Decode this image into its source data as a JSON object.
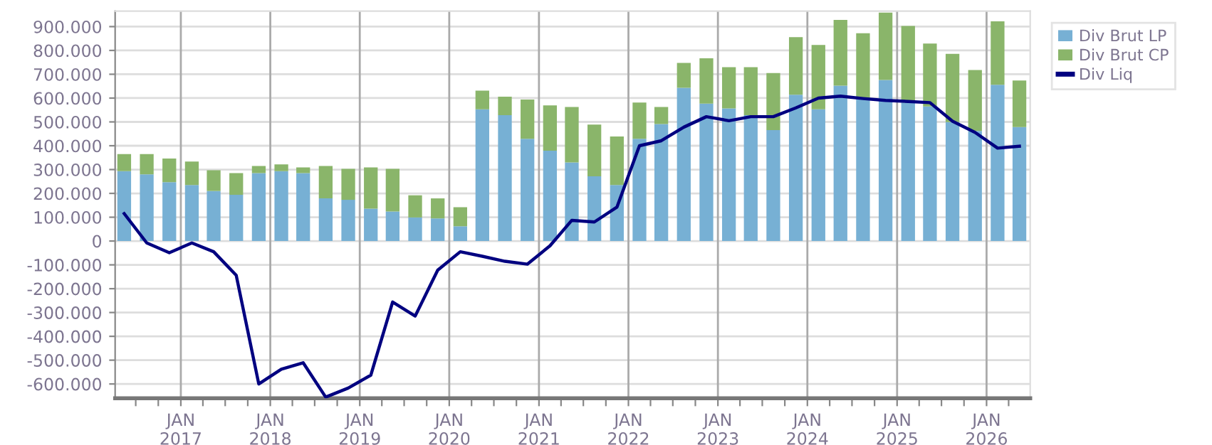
{
  "chart_data": {
    "type": "bar",
    "stacked": true,
    "x": [
      "2016-05-15",
      "2016-08-15",
      "2016-11-15",
      "2017-02-15",
      "2017-05-15",
      "2017-08-15",
      "2017-11-15",
      "2018-02-15",
      "2018-05-15",
      "2018-08-15",
      "2018-11-15",
      "2019-02-15",
      "2019-05-15",
      "2019-08-15",
      "2019-11-15",
      "2020-02-15",
      "2020-05-15",
      "2020-08-15",
      "2020-11-15",
      "2021-02-15",
      "2021-05-15",
      "2021-08-15",
      "2021-11-15",
      "2022-02-15",
      "2022-05-15",
      "2022-08-15",
      "2022-11-15",
      "2023-02-15",
      "2023-05-15",
      "2023-08-15",
      "2023-11-15",
      "2024-02-15",
      "2024-05-15",
      "2024-08-15",
      "2024-11-15",
      "2025-02-15",
      "2025-05-15",
      "2025-08-15",
      "2025-11-15",
      "2026-02-15",
      "2026-05-15"
    ],
    "series": [
      {
        "name": "Div Brut LP",
        "color": "#77b0d4",
        "values": [
          293000,
          280000,
          247000,
          235000,
          210000,
          194000,
          285000,
          293000,
          285000,
          179000,
          173000,
          136000,
          124000,
          99000,
          95000,
          62000,
          553000,
          528000,
          429000,
          379000,
          330000,
          272000,
          235000,
          429000,
          491000,
          643000,
          577000,
          557000,
          528000,
          466000,
          614000,
          553000,
          652000,
          598000,
          676000,
          581000,
          565000,
          499000,
          462000,
          656000,
          478000
        ]
      },
      {
        "name": "Div Brut CP",
        "color": "#8ab56a",
        "values": [
          72000,
          85000,
          99000,
          99000,
          87000,
          91000,
          30000,
          29000,
          24000,
          136000,
          130000,
          173000,
          179000,
          93000,
          84000,
          80000,
          78000,
          78000,
          165000,
          190000,
          233000,
          217000,
          204000,
          152000,
          72000,
          105000,
          190000,
          173000,
          202000,
          239000,
          242000,
          270000,
          276000,
          274000,
          283000,
          322000,
          264000,
          287000,
          256000,
          266000,
          196000
        ]
      },
      {
        "name": "Div Liq",
        "type": "line",
        "color": "#000080",
        "values": [
          115000,
          -8000,
          -49000,
          -8000,
          -45000,
          -144000,
          -600000,
          -538000,
          -511000,
          -655000,
          -617000,
          -563000,
          -256000,
          -315000,
          -122000,
          -45000,
          -64000,
          -85000,
          -97000,
          -20000,
          87000,
          80000,
          142000,
          400000,
          421000,
          478000,
          522000,
          505000,
          522000,
          522000,
          559000,
          600000,
          608000,
          598000,
          590000,
          586000,
          581000,
          503000,
          456000,
          390000,
          398000
        ]
      }
    ],
    "xlim": [
      "2016-04-08",
      "2026-06-28"
    ],
    "xticks": [
      {
        "value": "2016-07-01",
        "label": null
      },
      {
        "value": "2016-10-01",
        "label": null
      },
      {
        "value": "2017-01-01",
        "label": "JAN\n2017"
      },
      {
        "value": "2017-04-01",
        "label": null
      },
      {
        "value": "2017-07-01",
        "label": null
      },
      {
        "value": "2017-10-01",
        "label": null
      },
      {
        "value": "2018-01-01",
        "label": "JAN\n2018"
      },
      {
        "value": "2018-04-01",
        "label": null
      },
      {
        "value": "2018-07-01",
        "label": null
      },
      {
        "value": "2018-10-01",
        "label": null
      },
      {
        "value": "2019-01-01",
        "label": "JAN\n2019"
      },
      {
        "value": "2019-04-01",
        "label": null
      },
      {
        "value": "2019-07-01",
        "label": null
      },
      {
        "value": "2019-10-01",
        "label": null
      },
      {
        "value": "2020-01-01",
        "label": "JAN\n2020"
      },
      {
        "value": "2020-04-01",
        "label": null
      },
      {
        "value": "2020-07-01",
        "label": null
      },
      {
        "value": "2020-10-01",
        "label": null
      },
      {
        "value": "2021-01-01",
        "label": "JAN\n2021"
      },
      {
        "value": "2021-04-01",
        "label": null
      },
      {
        "value": "2021-07-01",
        "label": null
      },
      {
        "value": "2021-10-01",
        "label": null
      },
      {
        "value": "2022-01-01",
        "label": "JAN\n2022"
      },
      {
        "value": "2022-04-01",
        "label": null
      },
      {
        "value": "2022-07-01",
        "label": null
      },
      {
        "value": "2022-10-01",
        "label": null
      },
      {
        "value": "2023-01-01",
        "label": "JAN\n2023"
      },
      {
        "value": "2023-04-01",
        "label": null
      },
      {
        "value": "2023-07-01",
        "label": null
      },
      {
        "value": "2023-10-01",
        "label": null
      },
      {
        "value": "2024-01-01",
        "label": "JAN\n2024"
      },
      {
        "value": "2024-04-01",
        "label": null
      },
      {
        "value": "2024-07-01",
        "label": null
      },
      {
        "value": "2024-10-01",
        "label": null
      },
      {
        "value": "2025-01-01",
        "label": "JAN\n2025"
      },
      {
        "value": "2025-04-01",
        "label": null
      },
      {
        "value": "2025-07-01",
        "label": null
      },
      {
        "value": "2025-10-01",
        "label": null
      },
      {
        "value": "2026-01-01",
        "label": "JAN\n2026"
      },
      {
        "value": "2026-04-01",
        "label": null
      }
    ],
    "ylim": [
      -660000,
      965000
    ],
    "yticks": [
      {
        "value": -600000,
        "label": "-600.000"
      },
      {
        "value": -500000,
        "label": "-500.000"
      },
      {
        "value": -400000,
        "label": "-400.000"
      },
      {
        "value": -300000,
        "label": "-300.000"
      },
      {
        "value": -200000,
        "label": "-200.000"
      },
      {
        "value": -100000,
        "label": "-100.000"
      },
      0,
      {
        "value": 100000,
        "label": "100.000"
      },
      {
        "value": 200000,
        "label": "200.000"
      },
      {
        "value": 300000,
        "label": "300.000"
      },
      {
        "value": 400000,
        "label": "400.000"
      },
      {
        "value": 500000,
        "label": "500.000"
      },
      {
        "value": 600000,
        "label": "600.000"
      },
      {
        "value": 700000,
        "label": "700.000"
      },
      {
        "value": 800000,
        "label": "800.000"
      },
      {
        "value": 900000,
        "label": "900.000"
      }
    ],
    "grid": true,
    "legend": "top right"
  }
}
